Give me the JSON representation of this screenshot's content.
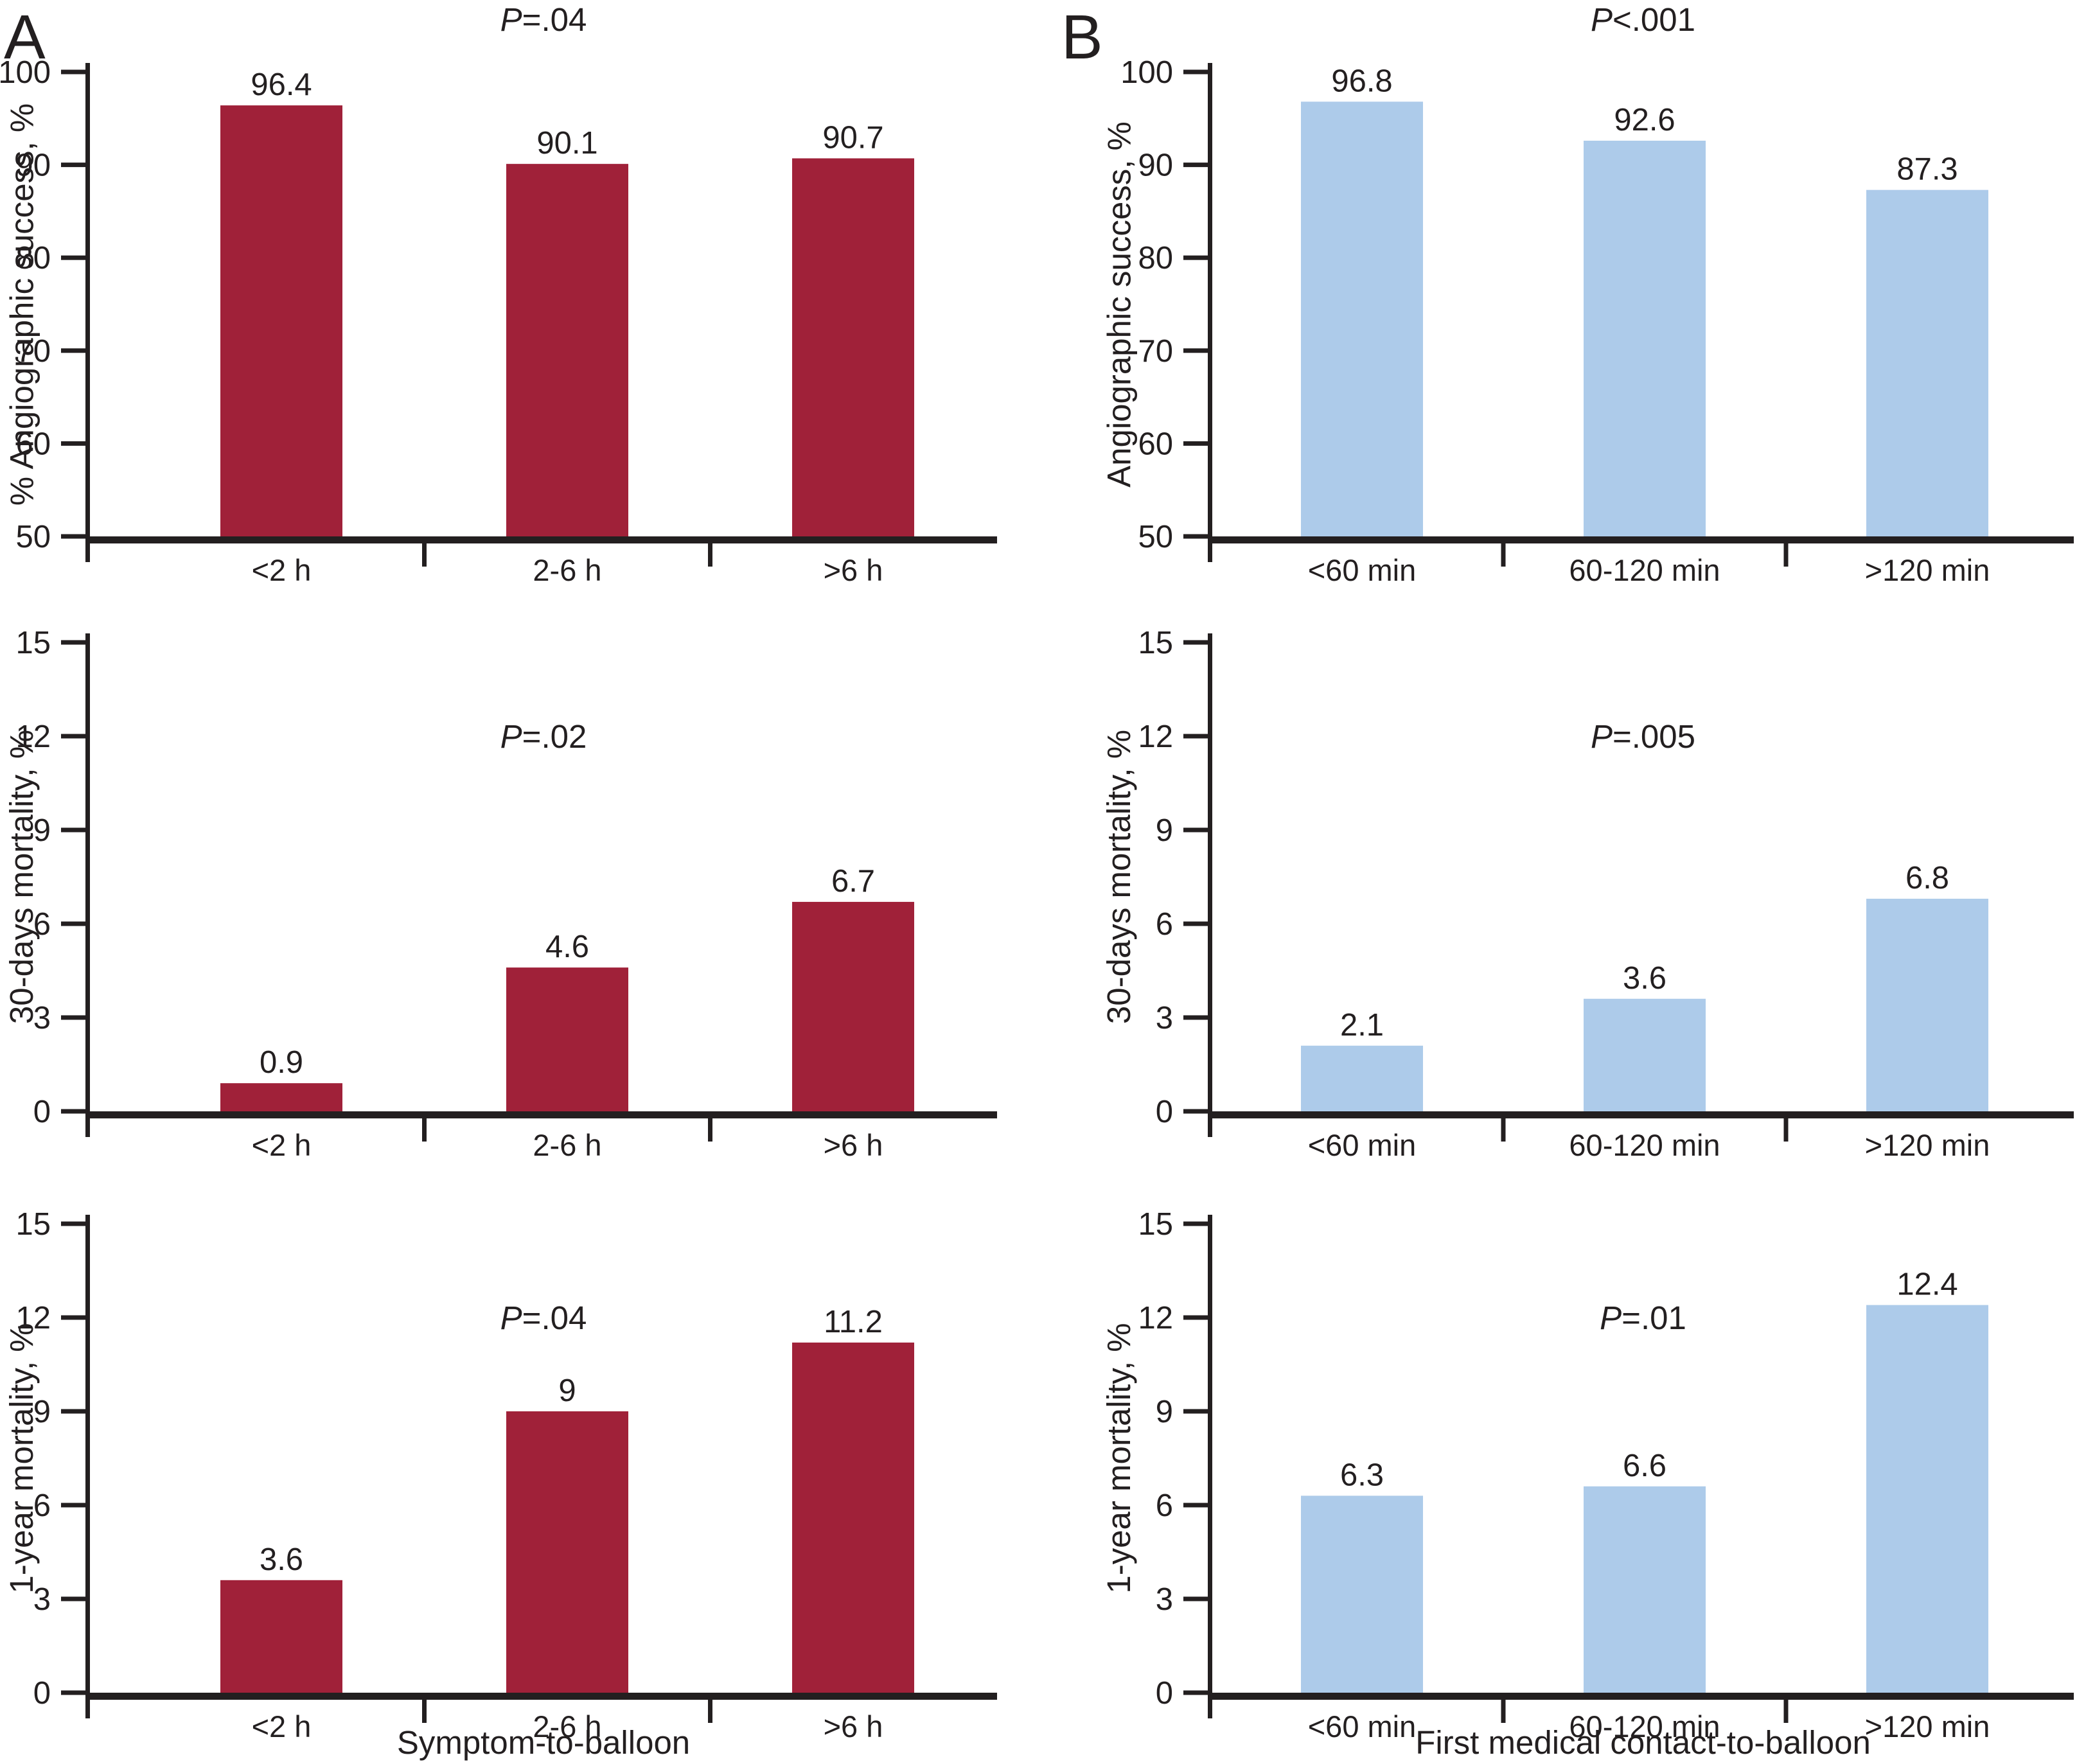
{
  "text_color": "#231F20",
  "panels": {
    "A": {
      "letter": "A",
      "xlabel": "Symptom-to-balloon",
      "bar_color": "#A02139",
      "categories": [
        "<2 h",
        "2-6 h",
        ">6 h"
      ]
    },
    "B": {
      "letter": "B",
      "xlabel": "First medical contact-to-balloon",
      "bar_color": "#ADCBEA",
      "categories": [
        "<60 min",
        "60-120 min",
        ">120 min"
      ]
    }
  },
  "chart_data": [
    {
      "type": "bar",
      "panel": "A",
      "row": 0,
      "p_italic": "P",
      "p_rest": "=.04",
      "p_label": "P=.04",
      "ylabel": "% Angiographic success, %",
      "xlabel": "",
      "categories": [
        "<2 h",
        "2-6 h",
        ">6 h"
      ],
      "values": [
        96.4,
        90.1,
        90.7
      ],
      "value_labels": [
        "96.4",
        "90.1",
        "90.7"
      ],
      "ylim": [
        50,
        100
      ],
      "yticks": [
        50,
        60,
        70,
        80,
        90,
        100
      ],
      "grid": false,
      "legend": "none",
      "bar_color": "#A02139"
    },
    {
      "type": "bar",
      "panel": "A",
      "row": 1,
      "p_italic": "P",
      "p_rest": "=.02",
      "p_label": "P=.02",
      "ylabel": "30-days mortality, %",
      "xlabel": "",
      "categories": [
        "<2 h",
        "2-6 h",
        ">6 h"
      ],
      "values": [
        0.9,
        4.6,
        6.7
      ],
      "value_labels": [
        "0.9",
        "4.6",
        "6.7"
      ],
      "ylim": [
        0,
        15
      ],
      "yticks": [
        0,
        3,
        6,
        9,
        12,
        15
      ],
      "grid": false,
      "legend": "none",
      "bar_color": "#A02139"
    },
    {
      "type": "bar",
      "panel": "A",
      "row": 2,
      "p_italic": "P",
      "p_rest": "=.04",
      "p_label": "P=.04",
      "ylabel": "1-year mortality, %",
      "xlabel": "Symptom-to-balloon",
      "categories": [
        "<2 h",
        "2-6 h",
        ">6 h"
      ],
      "values": [
        3.6,
        9,
        11.2
      ],
      "value_labels": [
        "3.6",
        "9",
        "11.2"
      ],
      "ylim": [
        0,
        15
      ],
      "yticks": [
        0,
        3,
        6,
        9,
        12,
        15
      ],
      "grid": false,
      "legend": "none",
      "bar_color": "#A02139"
    },
    {
      "type": "bar",
      "panel": "B",
      "row": 0,
      "p_italic": "P",
      "p_rest": "<.001",
      "p_label": "P<.001",
      "ylabel": "Angiographic success, %",
      "xlabel": "",
      "categories": [
        "<60 min",
        "60-120 min",
        ">120 min"
      ],
      "values": [
        96.8,
        92.6,
        87.3
      ],
      "value_labels": [
        "96.8",
        "92.6",
        "87.3"
      ],
      "ylim": [
        50,
        100
      ],
      "yticks": [
        50,
        60,
        70,
        80,
        90,
        100
      ],
      "grid": false,
      "legend": "none",
      "bar_color": "#ADCBEA"
    },
    {
      "type": "bar",
      "panel": "B",
      "row": 1,
      "p_italic": "P",
      "p_rest": "=.005",
      "p_label": "P=.005",
      "ylabel": "30-days mortality, %",
      "xlabel": "",
      "categories": [
        "<60 min",
        "60-120 min",
        ">120 min"
      ],
      "values": [
        2.1,
        3.6,
        6.8
      ],
      "value_labels": [
        "2.1",
        "3.6",
        "6.8"
      ],
      "ylim": [
        0,
        15
      ],
      "yticks": [
        0,
        3,
        6,
        9,
        12,
        15
      ],
      "grid": false,
      "legend": "none",
      "bar_color": "#ADCBEA"
    },
    {
      "type": "bar",
      "panel": "B",
      "row": 2,
      "p_italic": "P",
      "p_rest": "=.01",
      "p_label": "P=.01",
      "ylabel": "1-year mortality, %",
      "xlabel": "First medical contact-to-balloon",
      "categories": [
        "<60 min",
        "60-120 min",
        ">120 min"
      ],
      "values": [
        6.3,
        6.6,
        12.4
      ],
      "value_labels": [
        "6.3",
        "6.6",
        "12.4"
      ],
      "ylim": [
        0,
        15
      ],
      "yticks": [
        0,
        3,
        6,
        9,
        12,
        15
      ],
      "grid": false,
      "legend": "none",
      "bar_color": "#ADCBEA"
    }
  ]
}
